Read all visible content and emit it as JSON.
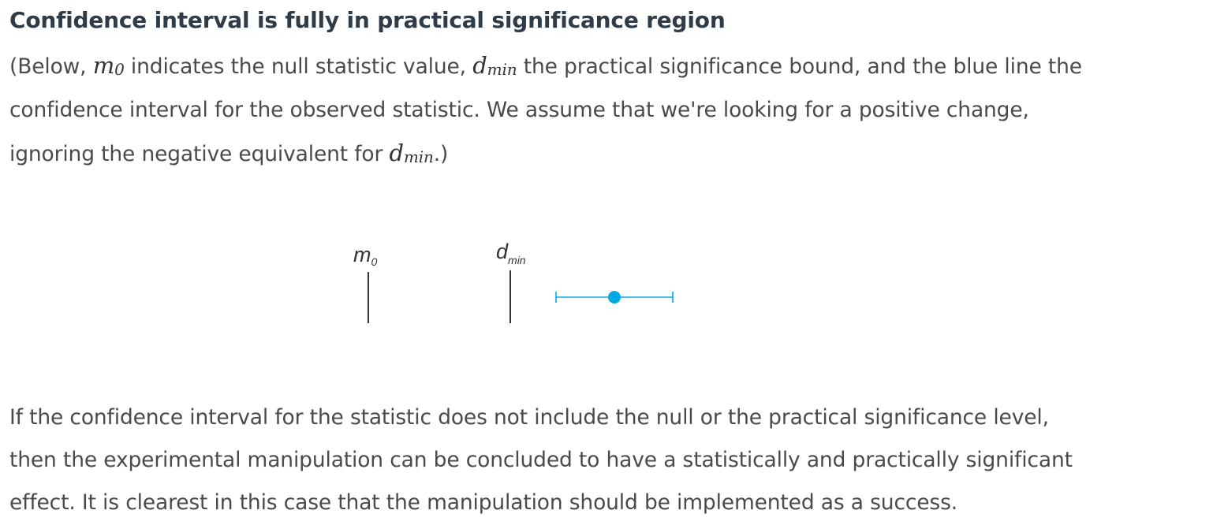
{
  "heading": "Confidence interval is fully in practical significance region",
  "intro": {
    "l1_a": "(Below, ",
    "m0_base": "m",
    "m0_sub": "0",
    "l1_b": " indicates the null statistic value, ",
    "dmin_base": "d",
    "dmin_sub": "min",
    "l1_c": " the practical significance bound, and the blue line the",
    "l2": "confidence interval for the observed statistic. We assume that we're looking for a positive change,",
    "l3_a": "ignoring the negative equivalent for ",
    "dmin2_base": "d",
    "dmin2_sub": "min",
    "l3_b": ".)"
  },
  "figure": {
    "m0_label": "m",
    "m0_sub": "0",
    "dmin_label": "d",
    "dmin_sub": "min",
    "ci_color": "#00a9e0"
  },
  "outro": {
    "l1": "If the confidence interval for the statistic does not include the null or the practical significance level,",
    "l2": "then the experimental manipulation can be concluded to have a statistically and practically significant",
    "l3": "effect. It is clearest in this case that the manipulation should be implemented as a success."
  }
}
